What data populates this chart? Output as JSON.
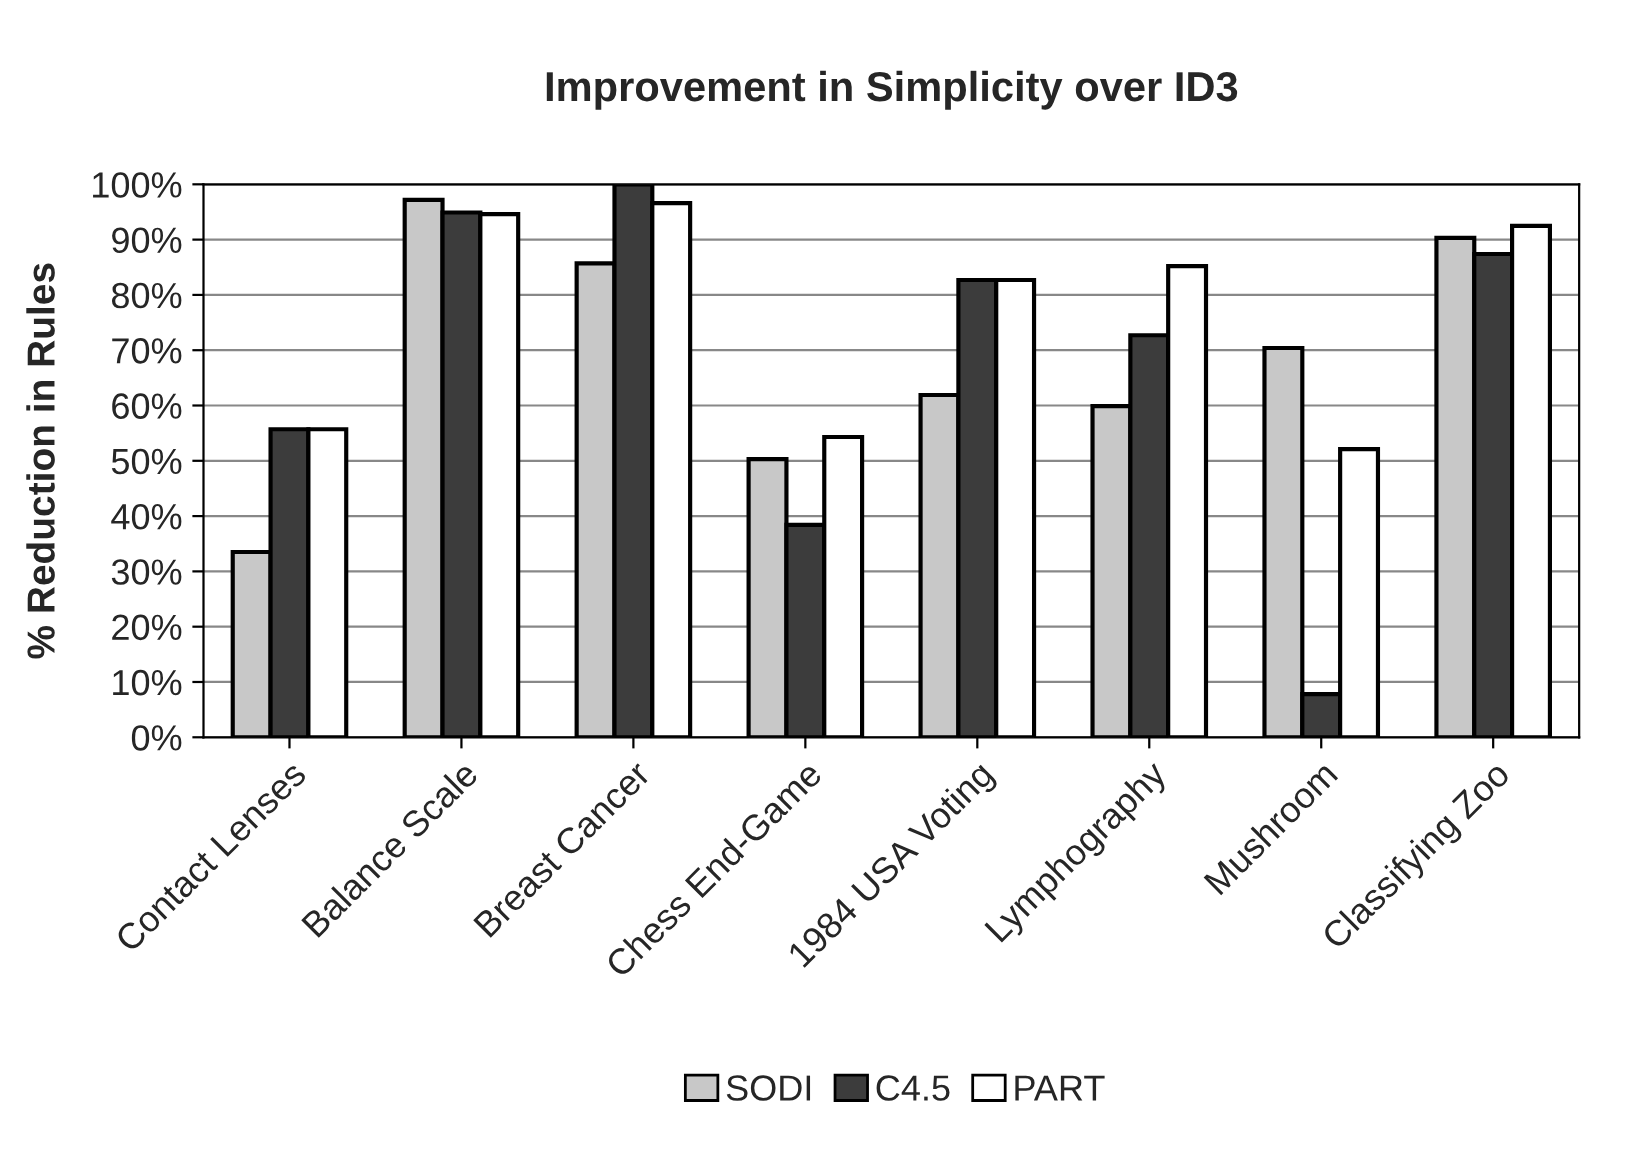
{
  "chart_data": {
    "type": "bar",
    "title": "Improvement in Simplicity over ID3",
    "ylabel": "% Reduction in Rules",
    "categories": [
      "Contact Lenses",
      "Balance Scale",
      "Breast Cancer",
      "Chess End-Game",
      "1984 USA Voting",
      "Lymphography",
      "Mushroom",
      "Classifying Zoo"
    ],
    "series": [
      {
        "name": "SODI",
        "color": "#c8c8c8",
        "values": [
          33.5,
          97.2,
          85.7,
          50.3,
          61.9,
          59.9,
          70.4,
          90.3
        ]
      },
      {
        "name": "C4.5",
        "color": "#3c3c3c",
        "values": [
          55.7,
          94.9,
          100,
          38.4,
          82.7,
          72.7,
          7.8,
          87.4
        ]
      },
      {
        "name": "PART",
        "color": "#ffffff",
        "values": [
          55.7,
          94.6,
          96.6,
          54.3,
          82.7,
          85.2,
          52.1,
          92.5
        ]
      }
    ],
    "ylim": [
      0,
      100
    ],
    "yticks": [
      {
        "value": 0,
        "label": "0%"
      },
      {
        "value": 10,
        "label": "10%"
      },
      {
        "value": 20,
        "label": "20%"
      },
      {
        "value": 30,
        "label": "30%"
      },
      {
        "value": 40,
        "label": "40%"
      },
      {
        "value": 50,
        "label": "50%"
      },
      {
        "value": 60,
        "label": "60%"
      },
      {
        "value": 70,
        "label": "70%"
      },
      {
        "value": 80,
        "label": "80%"
      },
      {
        "value": 90,
        "label": "90%"
      },
      {
        "value": 100,
        "label": "100%"
      }
    ],
    "grid": "y",
    "legend": "bottom"
  }
}
